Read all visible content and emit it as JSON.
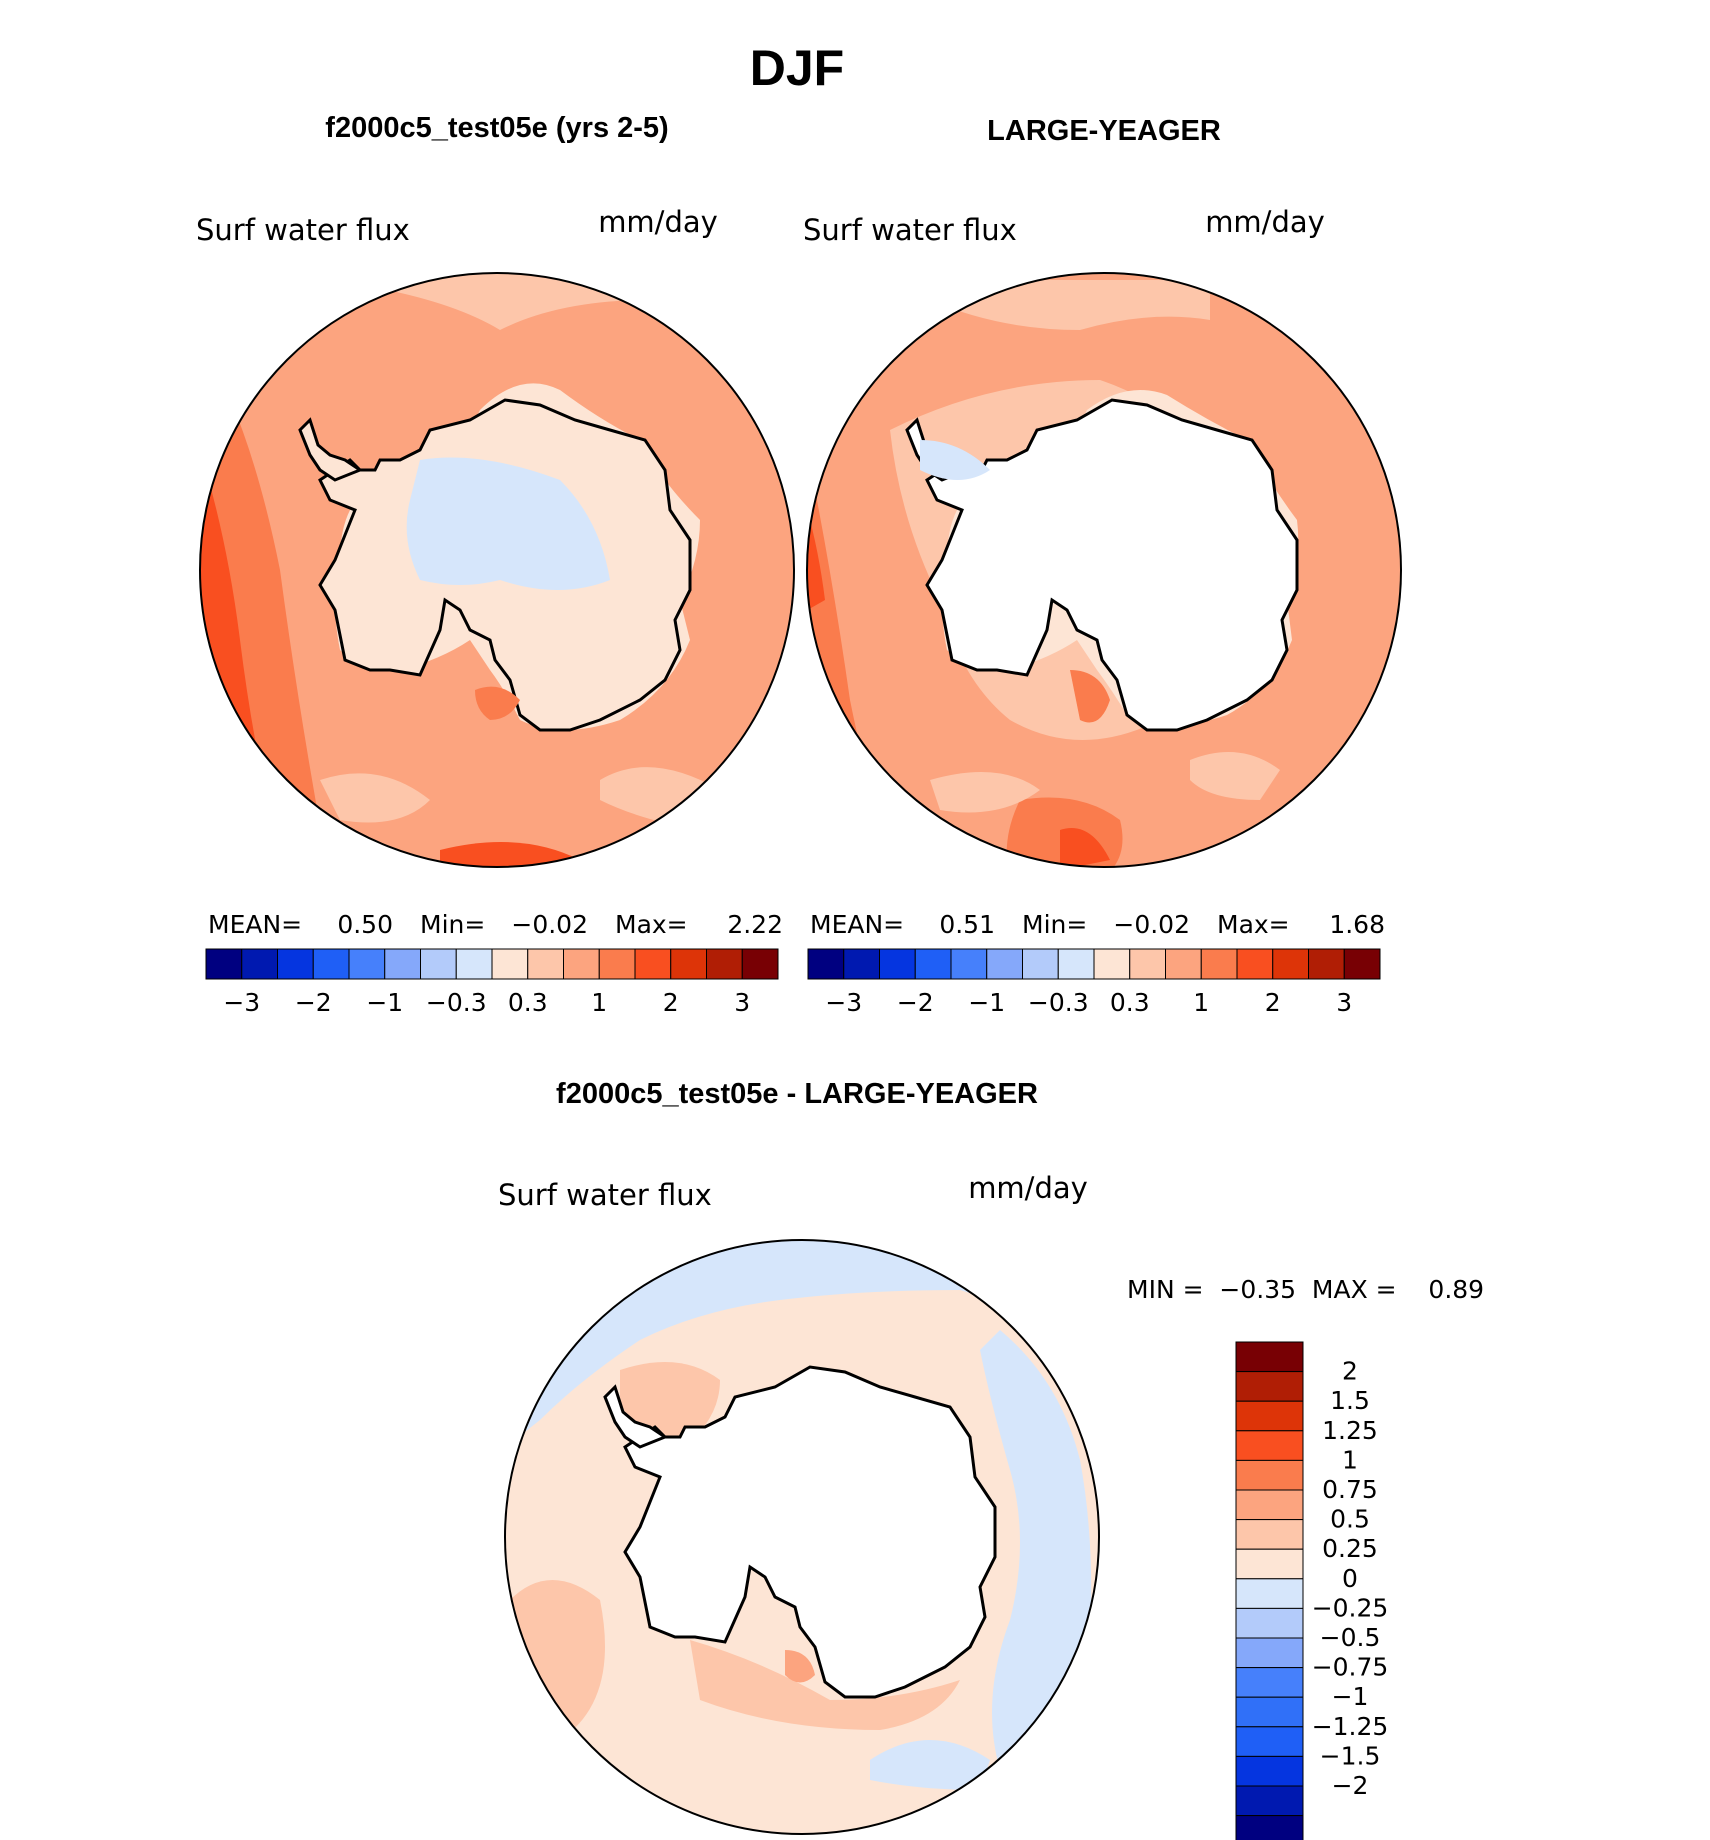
{
  "main_title": "DJF",
  "left_panel": {
    "title": "f2000c5_test05e (yrs 2-5)",
    "variable": "Surf water flux",
    "units": "mm/day",
    "mean_label": "MEAN=",
    "mean": "0.50",
    "min_label": "Min=",
    "min": "−0.02",
    "max_label": "Max=",
    "max": "2.22"
  },
  "right_panel": {
    "title": "LARGE-YEAGER",
    "variable": "Surf water flux",
    "units": "mm/day",
    "mean_label": "MEAN=",
    "mean": "0.51",
    "min_label": "Min=",
    "min": "−0.02",
    "max_label": "Max=",
    "max": "1.68"
  },
  "diff_panel": {
    "title": "f2000c5_test05e - LARGE-YEAGER",
    "variable": "Surf water flux",
    "units": "mm/day",
    "minmax": "MIN =  −0.35  MAX =    0.89"
  },
  "colors": {
    "top_scale": [
      "#000080",
      "#0019b0",
      "#0535e0",
      "#1f5ff6",
      "#4680fb",
      "#85a8fa",
      "#b3cbfa",
      "#d6e6fb",
      "#fde5d5",
      "#fdc6aa",
      "#fca47f",
      "#fa7c4d",
      "#f94f20",
      "#dd3408",
      "#b01e05",
      "#780004"
    ],
    "diff_scale": [
      "#000080",
      "#0019b0",
      "#0535e0",
      "#1f5ff6",
      "#3070f8",
      "#4680fb",
      "#85a8fa",
      "#b3cbfa",
      "#d6e6fb",
      "#fde5d5",
      "#fdc6aa",
      "#fca47f",
      "#fa7c4d",
      "#f94f20",
      "#dd3408",
      "#b01e05",
      "#780004"
    ]
  },
  "top_colorbar_ticks": [
    "−3",
    "−2",
    "−1",
    "−0.3",
    "0.3",
    "1",
    "2",
    "3"
  ],
  "diff_colorbar_ticks": [
    "2",
    "1.5",
    "1.25",
    "1",
    "0.75",
    "0.5",
    "0.25",
    "0",
    "−0.25",
    "−0.5",
    "−0.75",
    "−1",
    "−1.25",
    "−1.5",
    "−2"
  ]
}
